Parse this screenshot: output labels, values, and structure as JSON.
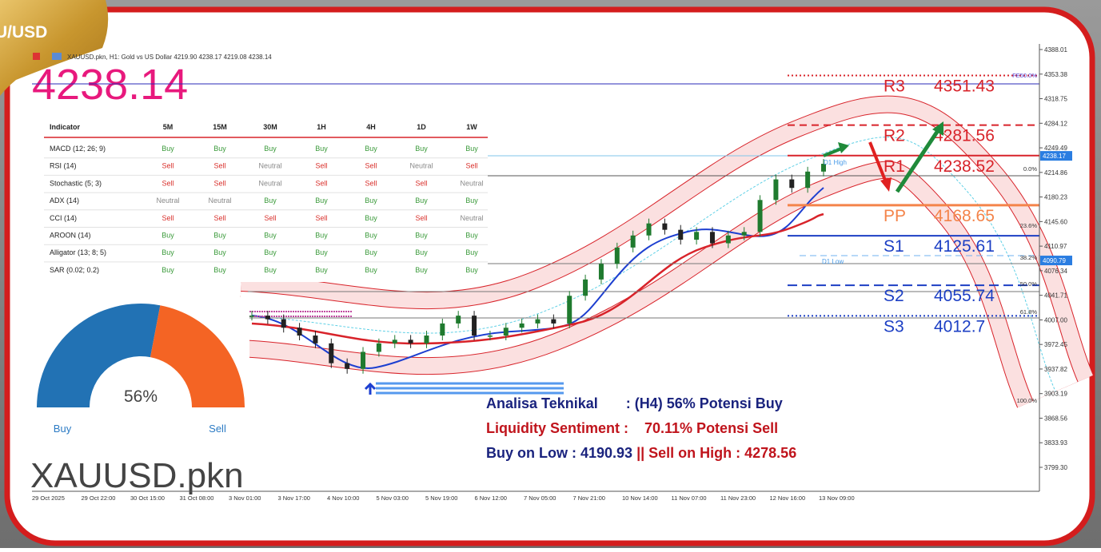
{
  "badge": "U/USD",
  "header": {
    "info": "XAUUSD.pkn, H1: Gold vs US Dollar 4219.90 4238.17 4219.08 4238.14",
    "price": "4238.14"
  },
  "table": {
    "columns": [
      "Indicator",
      "5M",
      "15M",
      "30M",
      "1H",
      "4H",
      "1D",
      "1W"
    ],
    "rows": [
      [
        "MACD (12; 26; 9)",
        "Buy",
        "Buy",
        "Buy",
        "Buy",
        "Buy",
        "Buy",
        "Buy"
      ],
      [
        "RSI (14)",
        "Sell",
        "Sell",
        "Neutral",
        "Sell",
        "Sell",
        "Neutral",
        "Sell"
      ],
      [
        "Stochastic (5; 3)",
        "Sell",
        "Sell",
        "Neutral",
        "Sell",
        "Sell",
        "Sell",
        "Neutral"
      ],
      [
        "ADX (14)",
        "Neutral",
        "Neutral",
        "Buy",
        "Buy",
        "Buy",
        "Buy",
        "Buy"
      ],
      [
        "CCI (14)",
        "Sell",
        "Sell",
        "Sell",
        "Sell",
        "Buy",
        "Sell",
        "Neutral"
      ],
      [
        "AROON (14)",
        "Buy",
        "Buy",
        "Buy",
        "Buy",
        "Buy",
        "Buy",
        "Buy"
      ],
      [
        "Alligator (13; 8; 5)",
        "Buy",
        "Buy",
        "Buy",
        "Buy",
        "Buy",
        "Buy",
        "Buy"
      ],
      [
        "SAR (0.02; 0.2)",
        "Buy",
        "Buy",
        "Buy",
        "Buy",
        "Buy",
        "Buy",
        "Buy"
      ]
    ],
    "signal_colors": {
      "Buy": "#3a9a3a",
      "Sell": "#d9302c",
      "Neutral": "#8a8a8a"
    }
  },
  "gauge": {
    "value": 56,
    "label": "56%",
    "buy": "Buy",
    "sell": "Sell",
    "buy_color": "#2272b4",
    "sell_color": "#f46424"
  },
  "symbol": "XAUUSD.pkn",
  "price_axis": {
    "ticks": [
      4388.01,
      4353.38,
      4318.75,
      4284.12,
      4249.49,
      4214.86,
      4180.23,
      {
        "value": 4145.6,
        "label": "4145.60"
      },
      4110.97,
      4076.34,
      4041.71,
      {
        "value": 4007,
        "label": "4007.00"
      },
      3972.45,
      3937.82,
      3903.19,
      3868.56,
      3833.93,
      {
        "value": 3799.3,
        "label": "3799.30"
      }
    ],
    "tags": [
      4238.17,
      4090.79
    ]
  },
  "time_axis": [
    "29 Oct 2025",
    "29 Oct 22:00",
    "30 Oct 15:00",
    "31 Oct 08:00",
    "3 Nov 01:00",
    "3 Nov 17:00",
    "4 Nov 10:00",
    "5 Nov 03:00",
    "5 Nov 19:00",
    "6 Nov 12:00",
    "7 Nov 05:00",
    "7 Nov 21:00",
    "10 Nov 14:00",
    "11 Nov 07:00",
    "11 Nov 23:00",
    "12 Nov 16:00",
    "13 Nov 09:00"
  ],
  "price_chart": {
    "closes": [
      4013,
      4008,
      3996,
      3985,
      3974,
      3946,
      3938,
      3962,
      3974,
      3979,
      3974,
      3985,
      4002,
      4013,
      3985,
      3985,
      3996,
      4002,
      4008,
      4002,
      4041,
      4064,
      4086,
      4109,
      4126,
      4143,
      4134,
      4120,
      4131,
      4115,
      4126,
      4131,
      4176,
      4205,
      4193,
      4216,
      4227
    ],
    "up_color": "#1f7a2e",
    "down_color": "#222222"
  },
  "pivots": [
    {
      "name": "R3",
      "value": 4351.43,
      "color": "#d8232a"
    },
    {
      "name": "R2",
      "value": 4281.56,
      "color": "#d8232a"
    },
    {
      "name": "R1",
      "value": 4238.52,
      "color": "#d8232a"
    },
    {
      "name": "PP",
      "value": 4168.65,
      "color": "#f4844a"
    },
    {
      "name": "S1",
      "value": 4125.61,
      "color": "#1c3fc4"
    },
    {
      "name": "S2",
      "value": 4055.74,
      "color": "#1c3fc4"
    },
    {
      "name": "S3",
      "value": 4012.7,
      "color": "#1c3fc4"
    }
  ],
  "fib_labels": [
    "FE50.0%",
    "0.0%",
    "23.6%",
    "38.2%",
    "50.0%",
    "61.8%",
    "100.0%"
  ],
  "d1_high": "D1 High",
  "d1_low": "D1 Low",
  "analysis": {
    "line1": "Analisa Teknikal       : (H4) 56% Potensi Buy",
    "line2": "Liquidity Sentiment :    70.11% Potensi Sell",
    "line3a": "Buy on Low : 4190.93 ",
    "line3b": "|| Sell on High : 4278.56"
  }
}
